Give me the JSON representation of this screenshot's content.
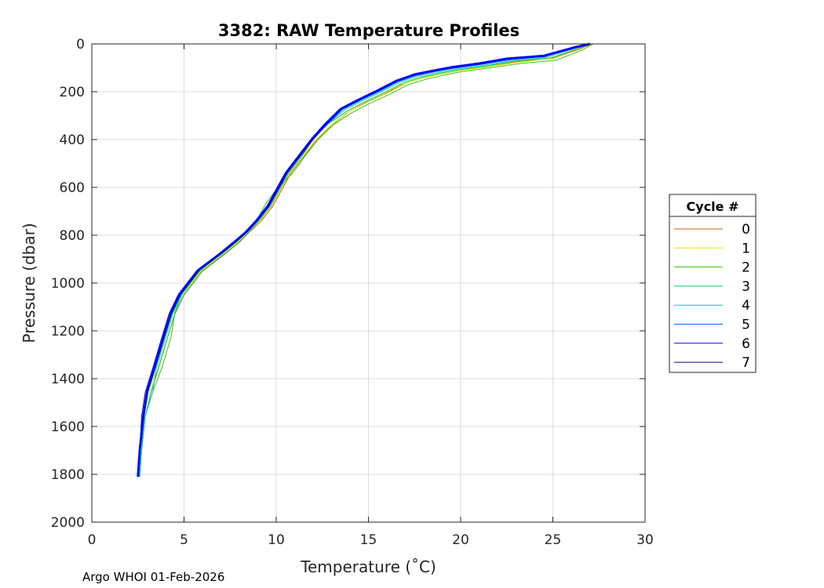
{
  "chart_data": {
    "type": "line",
    "title": "3382: RAW Temperature Profiles",
    "xlabel": "Temperature (˚C)",
    "ylabel": "Pressure (dbar)",
    "xlim": [
      0,
      30
    ],
    "ylim": [
      0,
      2000
    ],
    "y_reversed": true,
    "grid": true,
    "x_ticks": [
      "0",
      "5",
      "10",
      "15",
      "20",
      "25",
      "30"
    ],
    "y_ticks": [
      "0",
      "200",
      "400",
      "600",
      "800",
      "1000",
      "1200",
      "1400",
      "1600",
      "1800",
      "2000"
    ],
    "legend": {
      "title": "Cycle #",
      "placement": "right"
    },
    "series": [
      {
        "name": "0",
        "color": "#cc6600",
        "temperature": [
          27.1,
          26.5,
          25.0,
          23.0,
          21.5,
          20.0,
          19.0,
          18.0,
          17.0,
          16.0,
          15.0,
          14.0,
          13.0,
          12.2,
          11.5,
          10.8,
          10.3,
          9.8,
          9.2,
          8.5,
          8.0,
          7.2,
          6.0,
          5.0,
          4.5,
          4.1,
          3.6,
          3.2,
          2.9,
          2.7,
          2.6
        ],
        "pressure": [
          0,
          20,
          60,
          75,
          95,
          110,
          125,
          140,
          165,
          205,
          240,
          280,
          340,
          400,
          470,
          540,
          610,
          680,
          740,
          790,
          830,
          880,
          950,
          1050,
          1130,
          1230,
          1360,
          1460,
          1560,
          1700,
          1810
        ]
      },
      {
        "name": "1",
        "color": "#e6e600",
        "temperature": [
          27.0,
          26.3,
          24.8,
          23.0,
          21.3,
          19.8,
          18.8,
          17.8,
          16.8,
          15.8,
          14.8,
          13.8,
          12.9,
          12.1,
          11.4,
          10.7,
          10.2,
          9.7,
          9.1,
          8.4,
          7.9,
          7.1,
          5.9,
          4.9,
          4.4,
          4.0,
          3.5,
          3.1,
          2.8,
          2.7,
          2.6
        ],
        "pressure": [
          0,
          22,
          62,
          78,
          98,
          112,
          128,
          145,
          170,
          210,
          245,
          290,
          345,
          405,
          470,
          545,
          615,
          685,
          745,
          790,
          830,
          880,
          950,
          1050,
          1130,
          1230,
          1360,
          1460,
          1560,
          1700,
          1810
        ]
      },
      {
        "name": "2",
        "color": "#33cc00",
        "temperature": [
          27.2,
          26.6,
          25.2,
          23.2,
          21.6,
          20.1,
          19.1,
          18.1,
          17.1,
          16.1,
          15.1,
          14.1,
          13.1,
          12.3,
          11.6,
          10.9,
          10.1,
          9.5,
          9.0,
          8.4,
          7.9,
          7.1,
          5.9,
          4.9,
          4.5,
          4.3,
          3.8,
          3.3,
          2.9,
          2.7,
          2.6
        ],
        "pressure": [
          0,
          25,
          68,
          82,
          100,
          115,
          130,
          148,
          172,
          212,
          248,
          288,
          338,
          398,
          465,
          540,
          600,
          660,
          730,
          785,
          825,
          875,
          945,
          1045,
          1125,
          1225,
          1355,
          1455,
          1555,
          1700,
          1810
        ]
      },
      {
        "name": "3",
        "color": "#00cc66",
        "temperature": [
          27.0,
          26.4,
          24.9,
          22.9,
          21.4,
          19.9,
          18.9,
          17.9,
          16.9,
          15.9,
          14.9,
          13.9,
          12.8,
          12.0,
          11.4,
          10.7,
          10.2,
          9.7,
          9.1,
          8.5,
          8.0,
          7.2,
          6.0,
          5.0,
          4.5,
          4.1,
          3.6,
          3.2,
          2.9,
          2.7,
          2.6
        ],
        "pressure": [
          0,
          18,
          58,
          72,
          92,
          108,
          122,
          138,
          162,
          202,
          238,
          278,
          335,
          398,
          468,
          538,
          608,
          678,
          738,
          788,
          828,
          878,
          948,
          1048,
          1128,
          1228,
          1358,
          1458,
          1558,
          1700,
          1810
        ]
      },
      {
        "name": "4",
        "color": "#00cccc",
        "temperature": [
          27.0,
          26.3,
          24.7,
          22.8,
          21.2,
          19.7,
          18.7,
          17.7,
          16.7,
          15.7,
          14.7,
          13.7,
          12.8,
          12.0,
          11.3,
          10.6,
          10.1,
          9.6,
          9.0,
          8.4,
          7.8,
          7.0,
          5.8,
          4.9,
          4.4,
          4.0,
          3.5,
          3.3,
          2.9,
          2.7,
          2.6
        ],
        "pressure": [
          0,
          16,
          55,
          70,
          90,
          106,
          120,
          135,
          160,
          200,
          236,
          276,
          335,
          396,
          466,
          536,
          606,
          676,
          736,
          786,
          826,
          876,
          946,
          1046,
          1126,
          1226,
          1356,
          1456,
          1556,
          1700,
          1810
        ]
      },
      {
        "name": "5",
        "color": "#0066ff",
        "temperature": [
          26.9,
          26.2,
          24.6,
          22.7,
          21.1,
          19.6,
          18.6,
          17.6,
          16.6,
          15.6,
          14.6,
          13.6,
          12.8,
          12.0,
          11.3,
          10.6,
          10.1,
          9.6,
          9.0,
          8.4,
          7.8,
          7.0,
          5.8,
          4.8,
          4.3,
          3.9,
          3.4,
          3.0,
          2.8,
          2.6,
          2.5
        ],
        "pressure": [
          0,
          15,
          52,
          66,
          86,
          102,
          116,
          132,
          158,
          198,
          234,
          274,
          334,
          395,
          465,
          535,
          605,
          675,
          735,
          785,
          825,
          875,
          945,
          1045,
          1125,
          1225,
          1355,
          1455,
          1555,
          1700,
          1810
        ]
      },
      {
        "name": "6",
        "color": "#0000ff",
        "width": 3,
        "temperature": [
          27.0,
          26.2,
          24.5,
          22.5,
          21.0,
          19.5,
          18.5,
          17.5,
          16.5,
          15.5,
          14.5,
          13.5,
          12.7,
          12.0,
          11.3,
          10.6,
          10.1,
          9.6,
          9.0,
          8.4,
          7.8,
          7.0,
          5.8,
          4.8,
          4.3,
          3.9,
          3.4,
          3.0,
          2.8,
          2.6,
          2.5
        ],
        "pressure": [
          0,
          14,
          50,
          62,
          82,
          98,
          112,
          128,
          155,
          195,
          232,
          272,
          334,
          395,
          465,
          535,
          605,
          675,
          735,
          785,
          825,
          875,
          945,
          1045,
          1125,
          1225,
          1355,
          1455,
          1555,
          1700,
          1810
        ]
      },
      {
        "name": "7",
        "color": "#000080",
        "temperature": [
          26.9,
          26.1,
          24.4,
          22.4,
          20.9,
          19.4,
          18.4,
          17.4,
          16.4,
          15.4,
          14.4,
          13.4,
          12.6,
          11.9,
          11.2,
          10.5,
          10.0,
          9.5,
          8.9,
          8.3,
          7.7,
          6.9,
          5.7,
          4.7,
          4.2,
          3.8,
          3.3,
          2.9,
          2.7,
          2.6,
          2.5
        ],
        "pressure": [
          0,
          15,
          52,
          64,
          84,
          100,
          114,
          130,
          158,
          198,
          235,
          275,
          336,
          397,
          467,
          537,
          607,
          677,
          737,
          787,
          827,
          877,
          947,
          1047,
          1127,
          1227,
          1357,
          1457,
          1557,
          1700,
          1810
        ]
      }
    ]
  },
  "footer": {
    "text": "Argo WHOI 01-Feb-2026"
  }
}
